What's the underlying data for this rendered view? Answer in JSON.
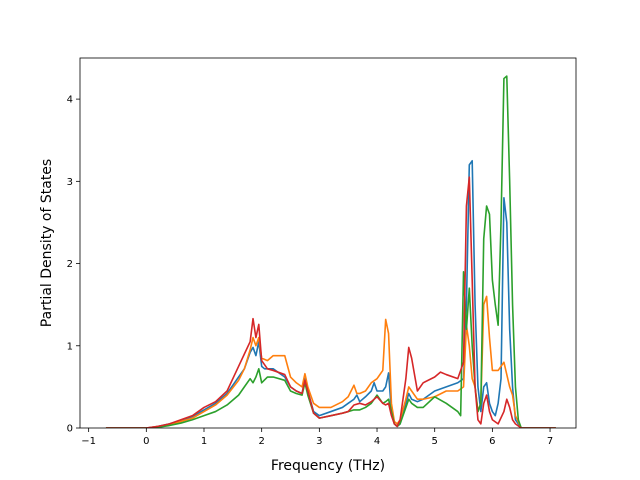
{
  "chart_data": {
    "type": "line",
    "title": "",
    "xlabel": "Frequency (THz)",
    "ylabel": "Partial Density of States",
    "xlim": [
      -1.15,
      7.45
    ],
    "ylim": [
      0,
      4.5
    ],
    "xticks": [
      -1,
      0,
      1,
      2,
      3,
      4,
      5,
      6,
      7
    ],
    "yticks": [
      0,
      1,
      2,
      3,
      4
    ],
    "grid": false,
    "legend": "none",
    "series": [
      {
        "color": "#1f77b4",
        "x": [
          -0.7,
          0.0,
          0.2,
          0.4,
          0.6,
          0.8,
          1.0,
          1.2,
          1.4,
          1.6,
          1.7,
          1.8,
          1.85,
          1.9,
          1.95,
          2.0,
          2.05,
          2.2,
          2.4,
          2.5,
          2.6,
          2.7,
          2.75,
          2.8,
          2.9,
          3.0,
          3.2,
          3.4,
          3.5,
          3.6,
          3.65,
          3.7,
          3.8,
          3.9,
          3.95,
          4.0,
          4.1,
          4.15,
          4.2,
          4.25,
          4.3,
          4.35,
          4.4,
          4.5,
          4.55,
          4.6,
          4.7,
          4.8,
          5.0,
          5.2,
          5.4,
          5.5,
          5.55,
          5.6,
          5.65,
          5.7,
          5.75,
          5.8,
          5.85,
          5.9,
          5.95,
          6.0,
          6.05,
          6.1,
          6.15,
          6.2,
          6.25,
          6.3,
          6.35,
          6.4,
          6.5,
          7.1
        ],
        "y": [
          0,
          0,
          0.02,
          0.05,
          0.09,
          0.14,
          0.22,
          0.3,
          0.42,
          0.62,
          0.72,
          0.92,
          0.98,
          0.88,
          1.05,
          0.75,
          0.72,
          0.72,
          0.62,
          0.5,
          0.45,
          0.42,
          0.6,
          0.45,
          0.2,
          0.15,
          0.2,
          0.25,
          0.3,
          0.35,
          0.4,
          0.32,
          0.38,
          0.45,
          0.55,
          0.45,
          0.45,
          0.5,
          0.67,
          0.2,
          0.05,
          0.02,
          0.05,
          0.3,
          0.42,
          0.35,
          0.32,
          0.35,
          0.45,
          0.5,
          0.55,
          0.6,
          1.5,
          3.2,
          3.25,
          1.5,
          0.5,
          0.2,
          0.5,
          0.55,
          0.3,
          0.2,
          0.15,
          0.3,
          0.6,
          2.8,
          2.5,
          1.2,
          0.5,
          0.1,
          0,
          0
        ]
      },
      {
        "color": "#ff7f0e",
        "x": [
          -0.7,
          0.0,
          0.2,
          0.4,
          0.6,
          0.8,
          1.0,
          1.2,
          1.4,
          1.6,
          1.7,
          1.8,
          1.85,
          1.9,
          1.95,
          2.0,
          2.1,
          2.2,
          2.4,
          2.5,
          2.6,
          2.7,
          2.75,
          2.8,
          2.9,
          3.0,
          3.2,
          3.4,
          3.5,
          3.6,
          3.65,
          3.7,
          3.8,
          3.9,
          4.0,
          4.1,
          4.15,
          4.2,
          4.25,
          4.3,
          4.35,
          4.4,
          4.5,
          4.55,
          4.6,
          4.7,
          4.8,
          5.0,
          5.2,
          5.4,
          5.5,
          5.55,
          5.6,
          5.65,
          5.7,
          5.75,
          5.8,
          5.85,
          5.9,
          5.95,
          6.0,
          6.1,
          6.2,
          6.3,
          6.35,
          6.4,
          6.5,
          7.1
        ],
        "y": [
          0,
          0,
          0.02,
          0.04,
          0.08,
          0.12,
          0.2,
          0.28,
          0.4,
          0.58,
          0.72,
          0.95,
          1.1,
          1.0,
          1.1,
          0.85,
          0.82,
          0.88,
          0.88,
          0.62,
          0.55,
          0.5,
          0.66,
          0.5,
          0.3,
          0.25,
          0.25,
          0.32,
          0.38,
          0.52,
          0.42,
          0.42,
          0.45,
          0.55,
          0.6,
          0.7,
          1.32,
          1.15,
          0.3,
          0.08,
          0.05,
          0.1,
          0.35,
          0.5,
          0.45,
          0.35,
          0.35,
          0.38,
          0.45,
          0.45,
          0.5,
          1.25,
          1.0,
          0.6,
          0.5,
          0.2,
          0.3,
          1.5,
          1.6,
          1.1,
          0.7,
          0.7,
          0.8,
          0.5,
          0.4,
          0.15,
          0,
          0
        ]
      },
      {
        "color": "#2ca02c",
        "x": [
          -0.7,
          0.0,
          0.2,
          0.4,
          0.6,
          0.8,
          1.0,
          1.2,
          1.4,
          1.6,
          1.7,
          1.8,
          1.85,
          1.9,
          1.95,
          2.0,
          2.1,
          2.2,
          2.4,
          2.5,
          2.6,
          2.7,
          2.75,
          2.8,
          2.9,
          3.0,
          3.2,
          3.4,
          3.5,
          3.6,
          3.7,
          3.8,
          3.9,
          4.0,
          4.1,
          4.15,
          4.2,
          4.25,
          4.3,
          4.35,
          4.4,
          4.5,
          4.55,
          4.6,
          4.7,
          4.8,
          5.0,
          5.2,
          5.4,
          5.45,
          5.5,
          5.55,
          5.6,
          5.65,
          5.7,
          5.75,
          5.8,
          5.85,
          5.9,
          5.95,
          6.0,
          6.05,
          6.1,
          6.15,
          6.2,
          6.25,
          6.3,
          6.35,
          6.4,
          6.45,
          6.5,
          7.1
        ],
        "y": [
          0,
          0,
          0.01,
          0.03,
          0.06,
          0.1,
          0.15,
          0.2,
          0.28,
          0.4,
          0.5,
          0.6,
          0.55,
          0.62,
          0.72,
          0.55,
          0.62,
          0.62,
          0.58,
          0.45,
          0.42,
          0.4,
          0.55,
          0.4,
          0.18,
          0.12,
          0.15,
          0.18,
          0.2,
          0.22,
          0.22,
          0.25,
          0.3,
          0.4,
          0.3,
          0.32,
          0.35,
          0.2,
          0.05,
          0.02,
          0.05,
          0.25,
          0.35,
          0.3,
          0.25,
          0.25,
          0.38,
          0.3,
          0.2,
          0.15,
          1.9,
          1.2,
          1.7,
          1.0,
          0.5,
          0.2,
          0.3,
          2.3,
          2.7,
          2.6,
          1.8,
          1.5,
          1.25,
          2.5,
          4.25,
          4.28,
          3.0,
          1.5,
          0.5,
          0.1,
          0,
          0
        ]
      },
      {
        "color": "#d62728",
        "x": [
          -0.7,
          0.0,
          0.2,
          0.4,
          0.6,
          0.8,
          1.0,
          1.2,
          1.4,
          1.6,
          1.7,
          1.8,
          1.85,
          1.9,
          1.95,
          2.0,
          2.1,
          2.2,
          2.4,
          2.5,
          2.6,
          2.7,
          2.75,
          2.8,
          2.9,
          3.0,
          3.2,
          3.4,
          3.5,
          3.6,
          3.7,
          3.8,
          3.9,
          4.0,
          4.1,
          4.15,
          4.2,
          4.25,
          4.3,
          4.35,
          4.4,
          4.5,
          4.55,
          4.6,
          4.7,
          4.8,
          5.0,
          5.1,
          5.2,
          5.4,
          5.5,
          5.55,
          5.6,
          5.65,
          5.7,
          5.75,
          5.8,
          5.85,
          5.9,
          5.95,
          6.0,
          6.1,
          6.2,
          6.25,
          6.3,
          6.35,
          6.4,
          6.5,
          7.1
        ],
        "y": [
          0,
          0,
          0.02,
          0.05,
          0.1,
          0.15,
          0.25,
          0.32,
          0.45,
          0.75,
          0.9,
          1.05,
          1.33,
          1.1,
          1.26,
          0.82,
          0.72,
          0.7,
          0.65,
          0.5,
          0.45,
          0.42,
          0.58,
          0.45,
          0.18,
          0.12,
          0.15,
          0.18,
          0.2,
          0.28,
          0.3,
          0.28,
          0.32,
          0.38,
          0.3,
          0.28,
          0.3,
          0.15,
          0.05,
          0.02,
          0.1,
          0.6,
          0.98,
          0.85,
          0.45,
          0.55,
          0.62,
          0.68,
          0.65,
          0.6,
          0.8,
          2.7,
          3.05,
          1.8,
          0.5,
          0.1,
          0.05,
          0.3,
          0.4,
          0.2,
          0.1,
          0.05,
          0.2,
          0.35,
          0.25,
          0.1,
          0.05,
          0,
          0
        ]
      }
    ]
  }
}
